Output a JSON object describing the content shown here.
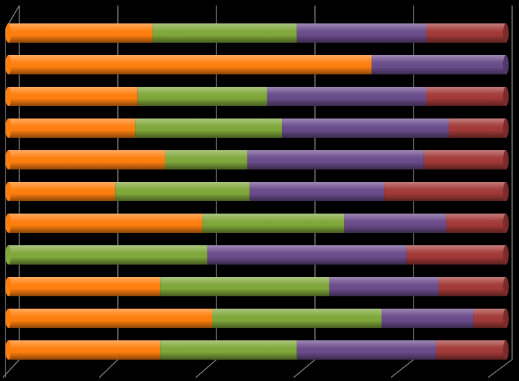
{
  "chart_data": {
    "type": "bar",
    "orientation": "horizontal",
    "stacked": "percent",
    "style": "3d-cylinder",
    "background": "#000000",
    "gridlines": true,
    "legend": "none",
    "xlim": [
      0,
      100
    ],
    "series": [
      {
        "color": "#ff7f0e",
        "values": [
          29,
          73,
          26,
          25.5,
          31.5,
          21.5,
          39,
          0,
          30.5,
          41,
          30.5
        ]
      },
      {
        "color": "#80a83a",
        "values": [
          29,
          0,
          26,
          29.5,
          16.5,
          27,
          28.5,
          40,
          34,
          34,
          27.5
        ]
      },
      {
        "color": "#6b4c8c",
        "values": [
          26,
          27,
          32,
          33.5,
          35.5,
          27,
          20.5,
          40,
          22,
          18.5,
          28
        ]
      },
      {
        "color": "#a33a38",
        "values": [
          16,
          0,
          16,
          11.5,
          16.5,
          24.5,
          12,
          20,
          13.5,
          6.5,
          14
        ]
      }
    ]
  }
}
